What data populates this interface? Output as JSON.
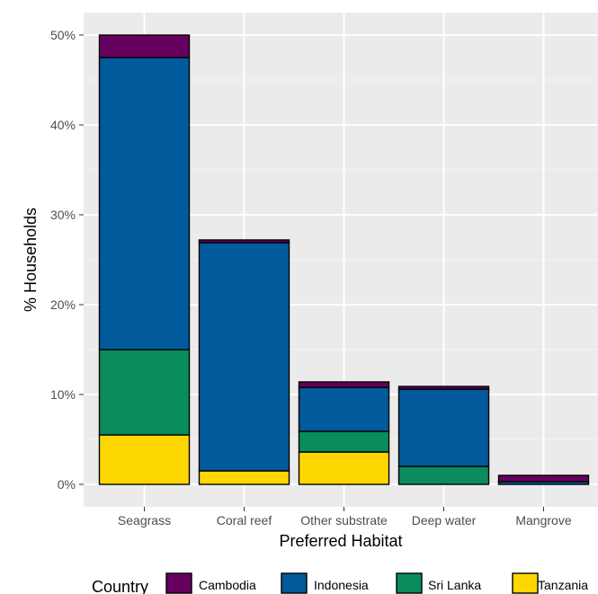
{
  "chart_data": {
    "type": "bar",
    "stacked": true,
    "xlabel": "Preferred Habitat",
    "ylabel": "% Households",
    "ylim": [
      0,
      52
    ],
    "y_ticks": [
      0,
      10,
      20,
      30,
      40,
      50
    ],
    "y_tick_labels": [
      "0%",
      "10%",
      "20%",
      "30%",
      "40%",
      "50%"
    ],
    "grid": true,
    "legend_position": "bottom",
    "legend_title": "Country",
    "categories": [
      "Seagrass",
      "Coral reef",
      "Other substrate",
      "Deep water",
      "Mangrove"
    ],
    "series": [
      {
        "name": "Tanzania",
        "color": "#FFD700",
        "values": [
          5.5,
          1.5,
          3.6,
          0,
          0
        ]
      },
      {
        "name": "Sri Lanka",
        "color": "#0A8C5C",
        "values": [
          9.5,
          0,
          2.3,
          2.0,
          0
        ]
      },
      {
        "name": "Indonesia",
        "color": "#005A9C",
        "values": [
          32.5,
          25.4,
          4.9,
          8.6,
          0.3
        ]
      },
      {
        "name": "Cambodia",
        "color": "#66005E",
        "values": [
          2.5,
          0.3,
          0.6,
          0.3,
          0.7
        ]
      }
    ],
    "legend_order": [
      "Cambodia",
      "Indonesia",
      "Sri Lanka",
      "Tanzania"
    ]
  }
}
